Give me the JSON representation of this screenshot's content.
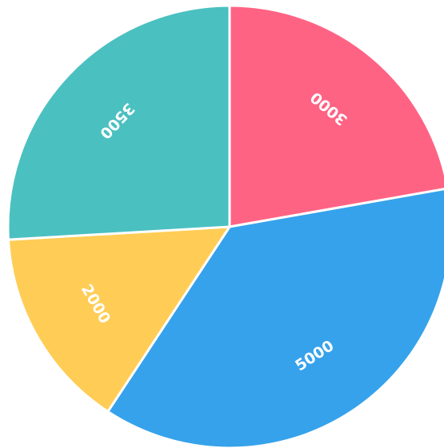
{
  "chart_data": {
    "type": "pie",
    "values": [
      3000,
      5000,
      2000,
      3500
    ],
    "colors": [
      "#ff6384",
      "#36a2eb",
      "#ffcd56",
      "#4bc0c0"
    ],
    "start_angle": 0,
    "direction": "clockwise"
  }
}
